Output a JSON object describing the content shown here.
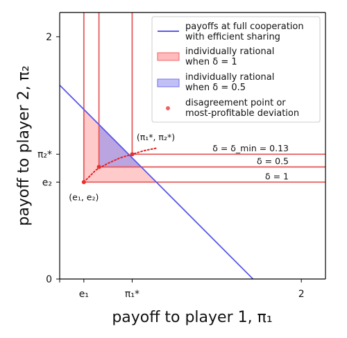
{
  "chart_data": {
    "type": "line",
    "xlabel": "payoff to player 1, π₁",
    "ylabel": "payoff to player 2, π₂",
    "xlim": [
      0,
      2.2
    ],
    "ylim": [
      0,
      2.2
    ],
    "x_ticks": [
      {
        "value": 0.2,
        "label": "e₁"
      },
      {
        "value": 0.6,
        "label": "π₁*"
      },
      {
        "value": 2.0,
        "label": "2"
      }
    ],
    "y_ticks": [
      {
        "value": 0,
        "label": "0"
      },
      {
        "value": 0.8,
        "label": "e₂"
      },
      {
        "value": 1.03,
        "label": "π₂*"
      },
      {
        "value": 2.0,
        "label": "2"
      }
    ],
    "series": [
      {
        "name": "payoffs at full cooperation\nwith efficient sharing",
        "type": "line",
        "color": "#5959e8",
        "x": [
          0,
          1.6
        ],
        "y": [
          1.6,
          0
        ]
      },
      {
        "name": "individually rational\nwhen δ = 1",
        "type": "area",
        "color": "#ff9e9e",
        "vertices": [
          [
            0.2,
            0.8
          ],
          [
            0.2,
            1.4
          ],
          [
            0.8,
            0.8
          ]
        ]
      },
      {
        "name": "individually rational\nwhen δ = 0.5",
        "type": "area",
        "color": "#8c8cf0",
        "vertices": [
          [
            0.325,
            0.925
          ],
          [
            0.325,
            1.275
          ],
          [
            0.675,
            0.925
          ]
        ]
      },
      {
        "name": "disagreement point or\nmost-profitable deviation",
        "type": "scatter",
        "color": "#e63030",
        "x": [
          0.2,
          0.325,
          0.6
        ],
        "y": [
          0.8,
          0.925,
          1.03
        ]
      }
    ],
    "boundary_lines": [
      {
        "label": "δ = δ_min = 0.13",
        "corner": [
          0.6,
          1.03
        ]
      },
      {
        "label": "δ = 0.5",
        "corner": [
          0.325,
          0.925
        ]
      },
      {
        "label": "δ = 1",
        "corner": [
          0.2,
          0.8
        ]
      }
    ],
    "deviation_curve": {
      "x": [
        0.2,
        0.3,
        0.4,
        0.5,
        0.6,
        0.7,
        0.8
      ],
      "y": [
        0.8,
        0.9,
        0.955,
        1.0,
        1.03,
        1.06,
        1.08
      ]
    },
    "annotations": [
      {
        "text": "(e₁, e₂)",
        "at": [
          0.2,
          0.8
        ]
      },
      {
        "text": "(π₁*, π₂*)",
        "at": [
          0.6,
          1.03
        ]
      }
    ],
    "grid": false,
    "legend_position": "top-right"
  }
}
